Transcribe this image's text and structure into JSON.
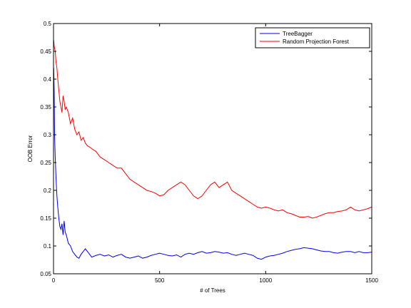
{
  "chart_data": {
    "type": "line",
    "title": "",
    "xlabel": "# of Trees",
    "ylabel": "OOB Error",
    "xlim": [
      0,
      1500
    ],
    "ylim": [
      0.05,
      0.5
    ],
    "xticks": [
      0,
      500,
      1000,
      1500
    ],
    "xtick_labels": [
      "0",
      "500",
      "1000",
      "1500"
    ],
    "yticks": [
      0.05,
      0.1,
      0.15,
      0.2,
      0.25,
      0.3,
      0.35,
      0.4,
      0.45,
      0.5
    ],
    "ytick_labels": [
      "0.05",
      "0.1",
      "0.15",
      "0.2",
      "0.25",
      "0.3",
      "0.35",
      "0.4",
      "0.45",
      "0.5"
    ],
    "grid": false,
    "legend_position": "top-right",
    "series": [
      {
        "name": "TreeBagger",
        "color": "#0000ff",
        "x": [
          1,
          3,
          5,
          8,
          12,
          16,
          20,
          25,
          30,
          35,
          40,
          45,
          50,
          55,
          60,
          70,
          80,
          90,
          100,
          110,
          120,
          130,
          140,
          150,
          160,
          170,
          180,
          200,
          220,
          240,
          260,
          280,
          300,
          320,
          340,
          360,
          380,
          400,
          420,
          440,
          460,
          480,
          500,
          520,
          540,
          560,
          580,
          600,
          620,
          640,
          660,
          680,
          700,
          720,
          740,
          760,
          780,
          800,
          820,
          840,
          860,
          880,
          900,
          920,
          940,
          960,
          980,
          1000,
          1020,
          1040,
          1060,
          1080,
          1100,
          1120,
          1140,
          1160,
          1180,
          1200,
          1220,
          1240,
          1260,
          1280,
          1300,
          1320,
          1340,
          1360,
          1380,
          1400,
          1420,
          1440,
          1460,
          1480,
          1500
        ],
        "y": [
          0.42,
          0.38,
          0.3,
          0.26,
          0.22,
          0.19,
          0.17,
          0.15,
          0.135,
          0.13,
          0.14,
          0.12,
          0.145,
          0.125,
          0.12,
          0.105,
          0.1,
          0.09,
          0.085,
          0.08,
          0.078,
          0.085,
          0.09,
          0.095,
          0.09,
          0.085,
          0.08,
          0.083,
          0.085,
          0.082,
          0.084,
          0.08,
          0.083,
          0.085,
          0.08,
          0.078,
          0.08,
          0.082,
          0.078,
          0.08,
          0.083,
          0.085,
          0.087,
          0.085,
          0.083,
          0.082,
          0.084,
          0.08,
          0.085,
          0.087,
          0.085,
          0.088,
          0.09,
          0.087,
          0.088,
          0.09,
          0.089,
          0.087,
          0.088,
          0.085,
          0.083,
          0.085,
          0.087,
          0.085,
          0.083,
          0.078,
          0.076,
          0.08,
          0.082,
          0.083,
          0.085,
          0.087,
          0.09,
          0.092,
          0.094,
          0.095,
          0.097,
          0.096,
          0.095,
          0.093,
          0.091,
          0.09,
          0.09,
          0.088,
          0.087,
          0.089,
          0.09,
          0.09,
          0.088,
          0.09,
          0.088,
          0.088,
          0.089
        ]
      },
      {
        "name": "Random Projection Forest",
        "color": "#ff0000",
        "x": [
          1,
          3,
          5,
          8,
          12,
          16,
          20,
          25,
          30,
          35,
          40,
          45,
          50,
          55,
          60,
          70,
          80,
          90,
          100,
          110,
          120,
          130,
          140,
          150,
          160,
          170,
          180,
          200,
          220,
          240,
          260,
          280,
          300,
          320,
          340,
          360,
          380,
          400,
          420,
          440,
          460,
          480,
          500,
          520,
          540,
          560,
          580,
          600,
          620,
          640,
          660,
          680,
          700,
          720,
          740,
          760,
          780,
          800,
          820,
          840,
          860,
          880,
          900,
          920,
          940,
          960,
          980,
          1000,
          1020,
          1040,
          1060,
          1080,
          1100,
          1120,
          1140,
          1160,
          1180,
          1200,
          1220,
          1240,
          1260,
          1280,
          1300,
          1320,
          1340,
          1360,
          1380,
          1400,
          1420,
          1440,
          1460,
          1480,
          1500
        ],
        "y": [
          0.47,
          0.46,
          0.455,
          0.45,
          0.43,
          0.42,
          0.4,
          0.38,
          0.36,
          0.35,
          0.34,
          0.37,
          0.36,
          0.345,
          0.35,
          0.34,
          0.32,
          0.33,
          0.31,
          0.3,
          0.305,
          0.29,
          0.295,
          0.285,
          0.28,
          0.278,
          0.275,
          0.27,
          0.26,
          0.255,
          0.25,
          0.245,
          0.24,
          0.24,
          0.23,
          0.22,
          0.215,
          0.21,
          0.205,
          0.2,
          0.198,
          0.195,
          0.19,
          0.192,
          0.2,
          0.205,
          0.21,
          0.215,
          0.21,
          0.2,
          0.19,
          0.185,
          0.19,
          0.2,
          0.21,
          0.215,
          0.205,
          0.21,
          0.215,
          0.2,
          0.195,
          0.19,
          0.185,
          0.18,
          0.175,
          0.17,
          0.168,
          0.17,
          0.168,
          0.165,
          0.163,
          0.165,
          0.16,
          0.158,
          0.155,
          0.152,
          0.152,
          0.153,
          0.15,
          0.152,
          0.155,
          0.158,
          0.16,
          0.16,
          0.162,
          0.163,
          0.165,
          0.17,
          0.165,
          0.163,
          0.165,
          0.167,
          0.17
        ]
      }
    ]
  }
}
